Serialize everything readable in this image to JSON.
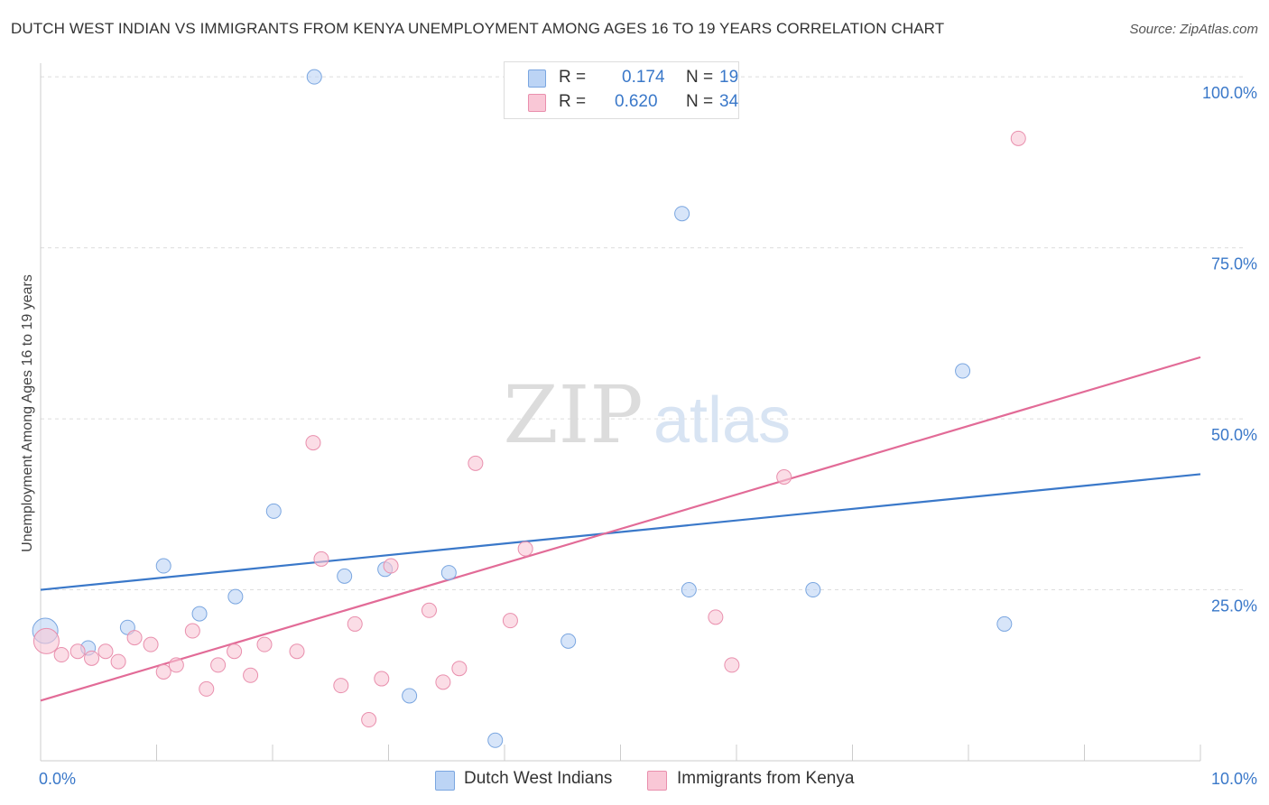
{
  "header": {
    "title": "DUTCH WEST INDIAN VS IMMIGRANTS FROM KENYA UNEMPLOYMENT AMONG AGES 16 TO 19 YEARS CORRELATION CHART",
    "source": "Source: ZipAtlas.com"
  },
  "watermark": {
    "zip": "ZIP",
    "atlas": "atlas"
  },
  "legend": {
    "rows": [
      {
        "r_label": "R =",
        "r_value": "0.174",
        "n_label": "N =",
        "n_value": "19"
      },
      {
        "r_label": "R =",
        "r_value": "0.620",
        "n_label": "N =",
        "n_value": "34"
      }
    ]
  },
  "colors": {
    "blue_fill": "#bcd4f5",
    "blue_stroke": "#7aa6e0",
    "blue_line": "#3a78c9",
    "pink_fill": "#f9c7d6",
    "pink_stroke": "#e98fad",
    "pink_line": "#e26b97",
    "tick_label": "#3a78c9",
    "grid": "#dddddd"
  },
  "chart_data": {
    "type": "scatter",
    "title": "DUTCH WEST INDIAN VS IMMIGRANTS FROM KENYA UNEMPLOYMENT AMONG AGES 16 TO 19 YEARS CORRELATION CHART",
    "xlabel": "",
    "ylabel": "Unemployment Among Ages 16 to 19 years",
    "xlim": [
      0,
      10
    ],
    "ylim": [
      0,
      102
    ],
    "x_tick_labels": [
      {
        "value": 0,
        "label": "0.0%"
      },
      {
        "value": 10,
        "label": "10.0%"
      }
    ],
    "y_tick_labels": [
      {
        "value": 25,
        "label": "25.0%"
      },
      {
        "value": 50,
        "label": "50.0%"
      },
      {
        "value": 75,
        "label": "75.0%"
      },
      {
        "value": 100,
        "label": "100.0%"
      }
    ],
    "y_gridlines": [
      25,
      50,
      75,
      100
    ],
    "x_minor_ticks": [
      1,
      2,
      3,
      4,
      5,
      6,
      7,
      8,
      9,
      10
    ],
    "legend_position": "top-center",
    "series": [
      {
        "name": "Dutch West Indians",
        "color": "#bcd4f5",
        "r": 0.174,
        "n": 19,
        "trendline": {
          "x": [
            0,
            10
          ],
          "y": [
            25.0,
            41.9
          ]
        },
        "points": [
          {
            "x": 0.04,
            "y": 19.0,
            "big": true
          },
          {
            "x": 0.41,
            "y": 16.5
          },
          {
            "x": 0.75,
            "y": 19.5
          },
          {
            "x": 1.06,
            "y": 28.5
          },
          {
            "x": 1.37,
            "y": 21.5
          },
          {
            "x": 1.68,
            "y": 24.0
          },
          {
            "x": 2.01,
            "y": 36.5
          },
          {
            "x": 2.36,
            "y": 100.0
          },
          {
            "x": 2.62,
            "y": 27.0
          },
          {
            "x": 2.97,
            "y": 28.0
          },
          {
            "x": 3.18,
            "y": 9.5
          },
          {
            "x": 3.52,
            "y": 27.5
          },
          {
            "x": 3.92,
            "y": 3.0
          },
          {
            "x": 4.55,
            "y": 17.5
          },
          {
            "x": 5.53,
            "y": 80.0
          },
          {
            "x": 5.59,
            "y": 25.0
          },
          {
            "x": 6.66,
            "y": 25.0
          },
          {
            "x": 7.95,
            "y": 57.0
          },
          {
            "x": 8.31,
            "y": 20.0
          }
        ]
      },
      {
        "name": "Immigrants from Kenya",
        "color": "#f9c7d6",
        "r": 0.62,
        "n": 34,
        "trendline": {
          "x": [
            0,
            10
          ],
          "y": [
            8.8,
            59.0
          ]
        },
        "points": [
          {
            "x": 0.05,
            "y": 17.5,
            "big": true
          },
          {
            "x": 0.18,
            "y": 15.5
          },
          {
            "x": 0.32,
            "y": 16.0
          },
          {
            "x": 0.44,
            "y": 15.0
          },
          {
            "x": 0.56,
            "y": 16.0
          },
          {
            "x": 0.67,
            "y": 14.5
          },
          {
            "x": 0.81,
            "y": 18.0
          },
          {
            "x": 0.95,
            "y": 17.0
          },
          {
            "x": 1.06,
            "y": 13.0
          },
          {
            "x": 1.17,
            "y": 14.0
          },
          {
            "x": 1.31,
            "y": 19.0
          },
          {
            "x": 1.43,
            "y": 10.5
          },
          {
            "x": 1.53,
            "y": 14.0
          },
          {
            "x": 1.67,
            "y": 16.0
          },
          {
            "x": 1.81,
            "y": 12.5
          },
          {
            "x": 1.93,
            "y": 17.0
          },
          {
            "x": 2.21,
            "y": 16.0
          },
          {
            "x": 2.35,
            "y": 46.5
          },
          {
            "x": 2.42,
            "y": 29.5
          },
          {
            "x": 2.59,
            "y": 11.0
          },
          {
            "x": 2.71,
            "y": 20.0
          },
          {
            "x": 2.83,
            "y": 6.0
          },
          {
            "x": 2.94,
            "y": 12.0
          },
          {
            "x": 3.02,
            "y": 28.5
          },
          {
            "x": 3.35,
            "y": 22.0
          },
          {
            "x": 3.47,
            "y": 11.5
          },
          {
            "x": 3.61,
            "y": 13.5
          },
          {
            "x": 3.75,
            "y": 43.5
          },
          {
            "x": 4.05,
            "y": 20.5
          },
          {
            "x": 4.18,
            "y": 31.0
          },
          {
            "x": 5.82,
            "y": 21.0
          },
          {
            "x": 5.96,
            "y": 14.0
          },
          {
            "x": 6.41,
            "y": 41.5
          },
          {
            "x": 8.43,
            "y": 91.0
          }
        ]
      }
    ]
  }
}
